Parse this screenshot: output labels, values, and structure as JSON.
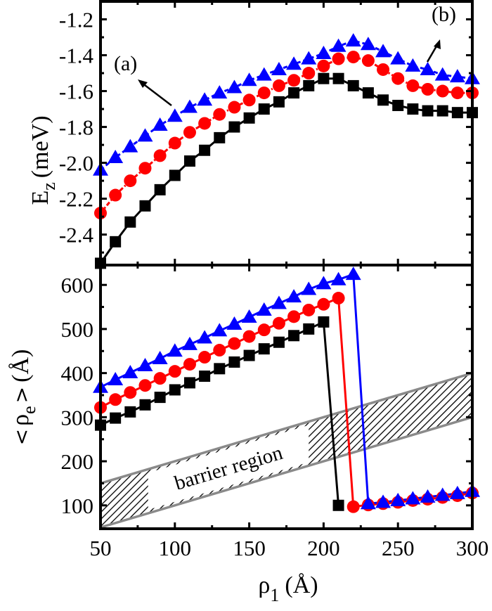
{
  "chart_data": [
    {
      "panel": "top",
      "type": "line",
      "ylabel_main": "E",
      "ylabel_sub": "z",
      "ylabel_unit": "(meV)",
      "xlim": [
        50,
        300
      ],
      "ylim": [
        -2.57,
        -1.1
      ],
      "yticks": [
        -2.4,
        -2.2,
        -2.0,
        -1.8,
        -1.6,
        -1.4,
        -1.2
      ],
      "ytick_labels": [
        "-2.4",
        "-2.2",
        "-2.0",
        "-1.8",
        "-1.6",
        "-1.4",
        "-1.2"
      ],
      "x": [
        50,
        60,
        70,
        80,
        90,
        100,
        110,
        120,
        130,
        140,
        150,
        160,
        170,
        180,
        190,
        200,
        210,
        220,
        230,
        240,
        250,
        260,
        270,
        280,
        290,
        300
      ],
      "series": [
        {
          "name": "squares",
          "marker": "square",
          "color": "#000000",
          "line": "solid",
          "values": [
            -2.56,
            -2.44,
            -2.33,
            -2.24,
            -2.15,
            -2.07,
            -1.99,
            -1.93,
            -1.86,
            -1.8,
            -1.75,
            -1.7,
            -1.66,
            -1.61,
            -1.57,
            -1.53,
            -1.53,
            -1.57,
            -1.61,
            -1.65,
            -1.68,
            -1.7,
            -1.71,
            -1.71,
            -1.72,
            -1.72
          ]
        },
        {
          "name": "circles",
          "marker": "circle",
          "color": "#ff0000",
          "line": "dash-dot",
          "values": [
            -2.28,
            -2.18,
            -2.1,
            -2.03,
            -1.96,
            -1.89,
            -1.83,
            -1.78,
            -1.73,
            -1.69,
            -1.65,
            -1.61,
            -1.57,
            -1.54,
            -1.5,
            -1.46,
            -1.42,
            -1.41,
            -1.43,
            -1.48,
            -1.53,
            -1.57,
            -1.59,
            -1.6,
            -1.61,
            -1.61
          ]
        },
        {
          "name": "triangles",
          "marker": "triangle",
          "color": "#0000ff",
          "line": "dash",
          "values": [
            -2.04,
            -1.97,
            -1.91,
            -1.85,
            -1.79,
            -1.74,
            -1.69,
            -1.65,
            -1.61,
            -1.58,
            -1.54,
            -1.51,
            -1.48,
            -1.45,
            -1.42,
            -1.39,
            -1.35,
            -1.32,
            -1.34,
            -1.38,
            -1.42,
            -1.46,
            -1.48,
            -1.51,
            -1.52,
            -1.53
          ]
        }
      ],
      "annotations": [
        {
          "text": "(a)",
          "target": "triangles"
        },
        {
          "text": "(b)",
          "target": "triangles"
        }
      ]
    },
    {
      "panel": "bottom",
      "type": "line",
      "xlabel_main": "ρ",
      "xlabel_sub": "1",
      "xlabel_unit": "(Å)",
      "ylabel_left": "<",
      "ylabel_main": "ρ",
      "ylabel_sub": "e",
      "ylabel_right": ">",
      "ylabel_unit": "(Å)",
      "xlim": [
        50,
        300
      ],
      "ylim": [
        47,
        645
      ],
      "xticks": [
        50,
        100,
        150,
        200,
        250,
        300
      ],
      "xtick_labels": [
        "50",
        "100",
        "150",
        "200",
        "250",
        "300"
      ],
      "yticks": [
        100,
        200,
        300,
        400,
        500,
        600
      ],
      "ytick_labels": [
        "100",
        "200",
        "300",
        "400",
        "500",
        "600"
      ],
      "x": [
        50,
        60,
        70,
        80,
        90,
        100,
        110,
        120,
        130,
        140,
        150,
        160,
        170,
        180,
        190,
        200,
        210,
        220,
        230,
        240,
        250,
        260,
        270,
        280,
        290,
        300
      ],
      "series": [
        {
          "name": "squares",
          "marker": "square",
          "color": "#000000",
          "values": [
            282,
            298,
            312,
            328,
            345,
            362,
            378,
            393,
            410,
            425,
            440,
            455,
            470,
            485,
            500,
            516,
            100,
            null,
            null,
            null,
            null,
            null,
            null,
            null,
            null,
            null
          ]
        },
        {
          "name": "circles",
          "marker": "circle",
          "color": "#ff0000",
          "values": [
            322,
            340,
            356,
            372,
            388,
            404,
            420,
            436,
            452,
            467,
            483,
            498,
            513,
            528,
            543,
            556,
            570,
            97,
            101,
            104,
            107,
            111,
            114,
            118,
            122,
            128
          ]
        },
        {
          "name": "triangles",
          "marker": "triangle",
          "color": "#0000ff",
          "values": [
            368,
            385,
            401,
            417,
            433,
            450,
            465,
            480,
            496,
            511,
            527,
            543,
            558,
            573,
            590,
            603,
            612,
            624,
            104,
            107,
            111,
            115,
            119,
            123,
            127,
            132
          ]
        }
      ],
      "band": {
        "label": "barrier region",
        "lower_offset": 0,
        "upper_offset": 100
      }
    }
  ]
}
